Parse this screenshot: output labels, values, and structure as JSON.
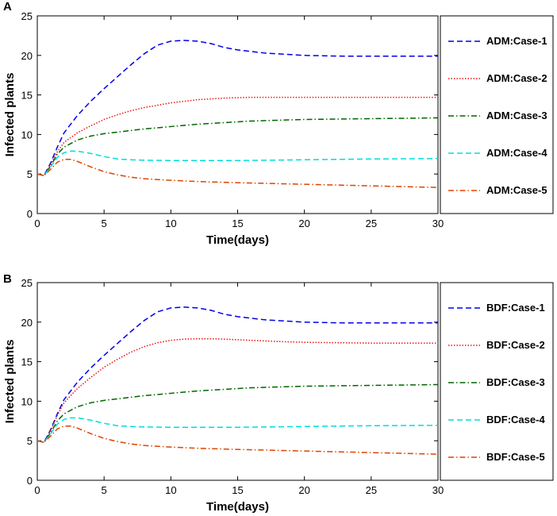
{
  "chart_data": [
    {
      "type": "line",
      "panel_label": "A",
      "xlabel": "Time(days)",
      "ylabel": "Infected plants",
      "xlim": [
        0,
        30
      ],
      "ylim": [
        0,
        25
      ],
      "xticks": [
        0,
        5,
        10,
        15,
        20,
        25,
        30
      ],
      "yticks": [
        0,
        5,
        10,
        15,
        20,
        25
      ],
      "legend_position": "right-outside",
      "series": [
        {
          "name": "ADM:Case-1",
          "color": "#0000ee",
          "dash": "dashed",
          "x": [
            0,
            0.5,
            1,
            1.5,
            2,
            3,
            4,
            5,
            6,
            7,
            8,
            9,
            10,
            11,
            12,
            13,
            14,
            15,
            17,
            20,
            23,
            26,
            30
          ],
          "y": [
            5,
            4.8,
            6.4,
            8.4,
            10.2,
            12.4,
            14.2,
            15.8,
            17.3,
            18.8,
            20.2,
            21.3,
            21.8,
            21.9,
            21.8,
            21.5,
            21.0,
            20.7,
            20.3,
            20.0,
            19.9,
            19.9,
            19.9
          ]
        },
        {
          "name": "ADM:Case-2",
          "color": "#ee1111",
          "dash": "dotted",
          "x": [
            0,
            0.5,
            1,
            1.5,
            2,
            3,
            4,
            5,
            6,
            7,
            8,
            10,
            12,
            14,
            16,
            18,
            20,
            25,
            30
          ],
          "y": [
            5,
            4.8,
            6.2,
            7.8,
            9.0,
            10.2,
            11.1,
            11.9,
            12.5,
            13.0,
            13.4,
            14.0,
            14.4,
            14.6,
            14.7,
            14.7,
            14.7,
            14.7,
            14.7
          ]
        },
        {
          "name": "ADM:Case-3",
          "color": "#006600",
          "dash": "dashdot",
          "x": [
            0,
            0.5,
            1,
            1.5,
            2,
            3,
            4,
            5,
            6,
            8,
            10,
            12,
            14,
            16,
            18,
            20,
            25,
            30
          ],
          "y": [
            5,
            4.8,
            6.0,
            7.5,
            8.4,
            9.3,
            9.8,
            10.1,
            10.3,
            10.7,
            11.0,
            11.3,
            11.5,
            11.7,
            11.8,
            11.9,
            12.0,
            12.1
          ]
        },
        {
          "name": "ADM:Case-4",
          "color": "#00dddd",
          "dash": "dashed",
          "x": [
            0,
            0.5,
            1,
            1.5,
            2,
            2.5,
            3,
            4,
            5,
            6,
            7,
            8,
            10,
            15,
            20,
            25,
            30
          ],
          "y": [
            5,
            4.8,
            5.9,
            7.1,
            7.7,
            7.9,
            7.9,
            7.6,
            7.2,
            6.9,
            6.8,
            6.75,
            6.7,
            6.7,
            6.8,
            6.9,
            6.95
          ]
        },
        {
          "name": "ADM:Case-5",
          "color": "#dd4400",
          "dash": "dashdot",
          "x": [
            0,
            0.5,
            1,
            1.5,
            2,
            2.5,
            3,
            4,
            5,
            6,
            7,
            8,
            10,
            12,
            15,
            20,
            25,
            30
          ],
          "y": [
            5,
            4.8,
            5.6,
            6.5,
            6.85,
            6.85,
            6.6,
            5.9,
            5.3,
            4.9,
            4.6,
            4.4,
            4.2,
            4.05,
            3.9,
            3.7,
            3.5,
            3.3
          ]
        }
      ]
    },
    {
      "type": "line",
      "panel_label": "B",
      "xlabel": "Time(days)",
      "ylabel": "Infected plants",
      "xlim": [
        0,
        30
      ],
      "ylim": [
        0,
        25
      ],
      "xticks": [
        0,
        5,
        10,
        15,
        20,
        25,
        30
      ],
      "yticks": [
        0,
        5,
        10,
        15,
        20,
        25
      ],
      "legend_position": "right-outside",
      "series": [
        {
          "name": "BDF:Case-1",
          "color": "#0000ee",
          "dash": "dashed",
          "x": [
            0,
            0.5,
            1,
            1.5,
            2,
            3,
            4,
            5,
            6,
            7,
            8,
            9,
            10,
            11,
            12,
            13,
            14,
            15,
            17,
            20,
            23,
            26,
            30
          ],
          "y": [
            5,
            4.8,
            6.4,
            8.4,
            10.2,
            12.4,
            14.2,
            15.8,
            17.3,
            18.8,
            20.2,
            21.3,
            21.8,
            21.9,
            21.8,
            21.5,
            21.0,
            20.7,
            20.3,
            20.0,
            19.9,
            19.9,
            19.9
          ]
        },
        {
          "name": "BDF:Case-2",
          "color": "#ee1111",
          "dash": "dotted",
          "x": [
            0,
            0.5,
            1,
            1.5,
            2,
            3,
            4,
            5,
            6,
            7,
            8,
            9,
            10,
            11,
            12,
            13,
            14,
            16,
            18,
            20,
            25,
            30
          ],
          "y": [
            5,
            4.8,
            6.3,
            8.2,
            9.8,
            11.6,
            13.0,
            14.3,
            15.3,
            16.2,
            16.9,
            17.4,
            17.7,
            17.85,
            17.9,
            17.9,
            17.85,
            17.7,
            17.55,
            17.45,
            17.35,
            17.35
          ]
        },
        {
          "name": "BDF:Case-3",
          "color": "#006600",
          "dash": "dashdot",
          "x": [
            0,
            0.5,
            1,
            1.5,
            2,
            3,
            4,
            5,
            6,
            8,
            10,
            12,
            14,
            16,
            18,
            20,
            25,
            30
          ],
          "y": [
            5,
            4.8,
            6.0,
            7.5,
            8.4,
            9.3,
            9.8,
            10.1,
            10.3,
            10.7,
            11.0,
            11.3,
            11.5,
            11.7,
            11.8,
            11.9,
            12.0,
            12.1
          ]
        },
        {
          "name": "BDF:Case-4",
          "color": "#00dddd",
          "dash": "dashed",
          "x": [
            0,
            0.5,
            1,
            1.5,
            2,
            2.5,
            3,
            4,
            5,
            6,
            7,
            8,
            10,
            15,
            20,
            25,
            30
          ],
          "y": [
            5,
            4.8,
            5.9,
            7.1,
            7.7,
            7.9,
            7.9,
            7.6,
            7.2,
            6.9,
            6.8,
            6.75,
            6.7,
            6.7,
            6.8,
            6.9,
            6.95
          ]
        },
        {
          "name": "BDF:Case-5",
          "color": "#dd4400",
          "dash": "dashdot",
          "x": [
            0,
            0.5,
            1,
            1.5,
            2,
            2.5,
            3,
            4,
            5,
            6,
            7,
            8,
            10,
            12,
            15,
            20,
            25,
            30
          ],
          "y": [
            5,
            4.8,
            5.6,
            6.5,
            6.85,
            6.85,
            6.6,
            5.9,
            5.3,
            4.9,
            4.6,
            4.4,
            4.2,
            4.05,
            3.9,
            3.7,
            3.5,
            3.3
          ]
        }
      ]
    }
  ]
}
